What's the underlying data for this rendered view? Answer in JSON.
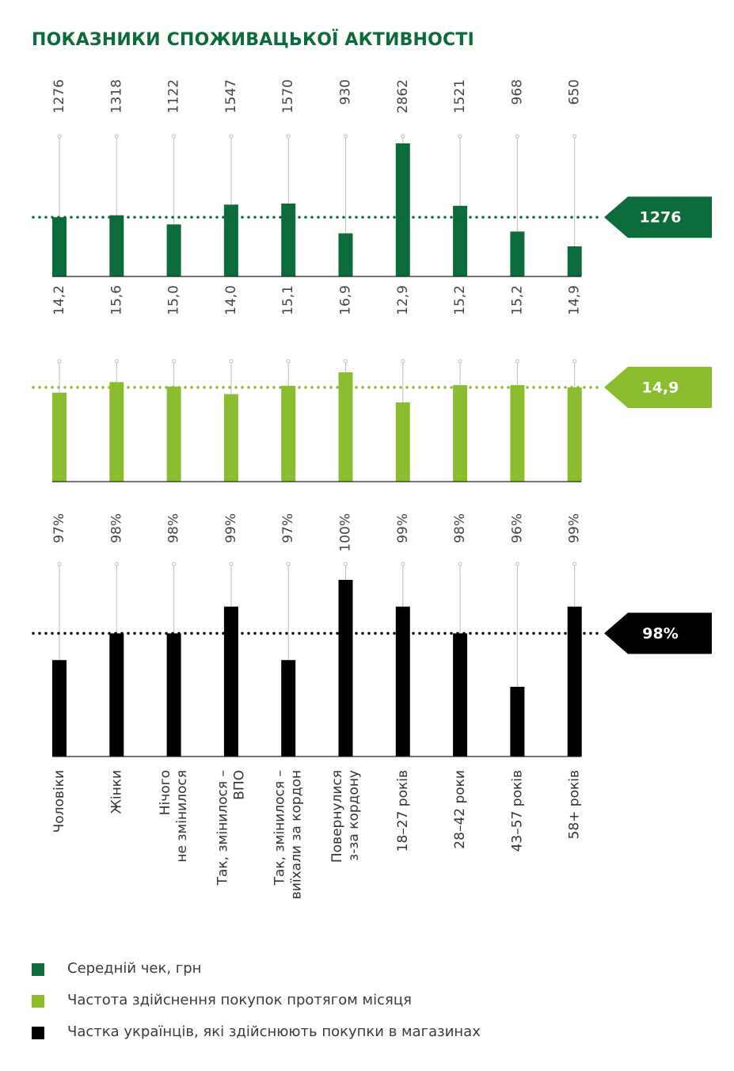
{
  "title": "ПОКАЗНИКИ СПОЖИВАЦЬКОЇ АКТИВНОСТІ",
  "chart_data": {
    "type": "bar",
    "categories": [
      [
        "Чоловіки"
      ],
      [
        "Жінки"
      ],
      [
        "Нічого",
        "не змінилося"
      ],
      [
        "Так, змінилося –",
        "ВПО"
      ],
      [
        "Так, змінилося –",
        "виїхали за кордон"
      ],
      [
        "Повернулися",
        "з-за кордону"
      ],
      [
        "18–27 років"
      ],
      [
        "28–42 роки"
      ],
      [
        "43–57 років"
      ],
      [
        "58+ років"
      ]
    ],
    "series": [
      {
        "name": "Середній чек, грн",
        "color": "#0b6b3a",
        "values": [
          1276,
          1318,
          1122,
          1547,
          1570,
          930,
          2862,
          1521,
          968,
          650
        ],
        "labels": [
          "1276",
          "1318",
          "1122",
          "1547",
          "1570",
          "930",
          "2862",
          "1521",
          "968",
          "650"
        ],
        "reference_value": 1276,
        "reference_label": "1276"
      },
      {
        "name": "Частота здійснення покупок протягом місяця",
        "color": "#8abd2e",
        "values": [
          14.2,
          15.6,
          15.0,
          14.0,
          15.1,
          16.9,
          12.9,
          15.2,
          15.2,
          14.9
        ],
        "labels": [
          "14,2",
          "15,6",
          "15,0",
          "14,0",
          "15,1",
          "16,9",
          "12,9",
          "15,2",
          "15,2",
          "14,9"
        ],
        "reference_value": 14.9,
        "reference_label": "14,9"
      },
      {
        "name": "Частка українців, які здійснюють покупки в магазинах",
        "color": "#000000",
        "values": [
          97,
          98,
          98,
          99,
          97,
          100,
          99,
          98,
          96,
          99
        ],
        "labels": [
          "97%",
          "98%",
          "98%",
          "99%",
          "97%",
          "100%",
          "99%",
          "98%",
          "96%",
          "99%"
        ],
        "reference_value": 98,
        "reference_label": "98%"
      }
    ]
  },
  "legend": [
    {
      "label": "Середній чек, грн",
      "color": "#0b6b3a"
    },
    {
      "label": "Частота здійснення покупок протягом місяця",
      "color": "#8abd2e"
    },
    {
      "label": "Частка українців, які здійснюють покупки в магазинах",
      "color": "#000000"
    }
  ]
}
